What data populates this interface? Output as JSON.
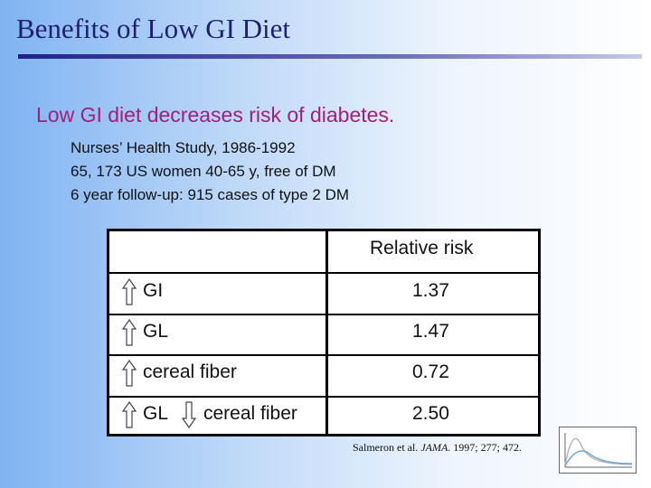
{
  "slide": {
    "title": "Benefits of Low GI Diet",
    "subtitle": "Low GI diet decreases risk of diabetes.",
    "study_lines": [
      "Nurses’ Health Study, 1986-1992",
      "65, 173 US women 40-65 y, free of DM",
      "6 year follow-up: 915 cases of type 2 DM"
    ]
  },
  "table": {
    "header": "Relative risk",
    "rows": [
      {
        "label": "GI",
        "value": "1.37",
        "arrow": "up-arrow"
      },
      {
        "label": "GL",
        "value": "1.47",
        "arrow": "up-arrow"
      },
      {
        "label": "cereal fiber",
        "value": "0.72",
        "arrow": "up-arrow"
      },
      {
        "label": "GL",
        "label2": "cereal fiber",
        "value": "2.50",
        "arrow": "up-arrow",
        "arrow2": "down-arrow"
      }
    ]
  },
  "citation": {
    "authors": "Salmeron et al. ",
    "journal": "JAMA",
    "rest": ". 1997; 277; 472."
  },
  "colors": {
    "title": "#1f1f6e",
    "subtitle": "#a0207a",
    "background": "#7fb3f2"
  },
  "logo": {
    "icon": "gi-curve-logo-icon"
  }
}
